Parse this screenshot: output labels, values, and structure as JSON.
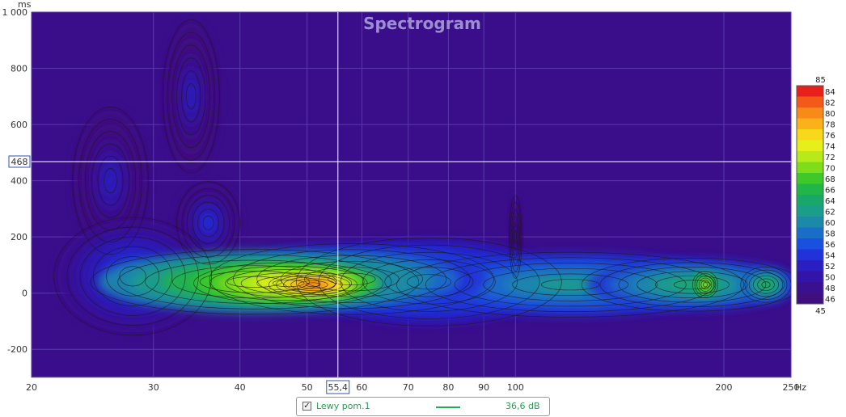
{
  "chart_data": {
    "type": "heatmap",
    "title": "Spectrogram",
    "xlabel": "",
    "x_unit": "Hz",
    "y_unit": "ms",
    "x_scale": "log",
    "xlim": [
      20,
      250
    ],
    "ylim": [
      -300,
      1000
    ],
    "x_ticks": [
      {
        "value": 20,
        "label": "20"
      },
      {
        "value": 30,
        "label": "30"
      },
      {
        "value": 40,
        "label": "40"
      },
      {
        "value": 50,
        "label": "50"
      },
      {
        "value": 60,
        "label": "60"
      },
      {
        "value": 70,
        "label": "70"
      },
      {
        "value": 80,
        "label": "80"
      },
      {
        "value": 90,
        "label": "90"
      },
      {
        "value": 100,
        "label": "100"
      },
      {
        "value": 200,
        "label": "200"
      },
      {
        "value": 250,
        "label": "250"
      }
    ],
    "y_ticks": [
      {
        "value": 1000,
        "label": "1 000"
      },
      {
        "value": 800,
        "label": "800"
      },
      {
        "value": 600,
        "label": "600"
      },
      {
        "value": 400,
        "label": "400"
      },
      {
        "value": 200,
        "label": "200"
      },
      {
        "value": 0,
        "label": "0"
      },
      {
        "value": -200,
        "label": "-200"
      }
    ],
    "cursor": {
      "x": 55.4,
      "x_label": "55,4",
      "y": 468,
      "y_label": "468"
    },
    "colorbar": {
      "min": 45,
      "max": 85,
      "min_label": "45",
      "max_label": "85",
      "ticks": [
        "84",
        "82",
        "80",
        "78",
        "76",
        "74",
        "72",
        "70",
        "68",
        "66",
        "64",
        "62",
        "60",
        "58",
        "56",
        "54",
        "52",
        "50",
        "48",
        "46"
      ],
      "colors": [
        "#e8201a",
        "#f25a1a",
        "#f88a1a",
        "#fbb21a",
        "#f8d81a",
        "#e6ef1a",
        "#b6ea1a",
        "#7edc1a",
        "#3ec82a",
        "#22b54a",
        "#1aa86a",
        "#1a9e8a",
        "#1a8aa8",
        "#1a6ec8",
        "#1a50e0",
        "#2033d8",
        "#2a1fc0",
        "#3214a8",
        "#3a1090",
        "#3f0f80"
      ]
    },
    "blobs": [
      {
        "hz": 51,
        "ms": 30,
        "rx": 0.14,
        "ry": 40,
        "level": 83
      },
      {
        "hz": 47,
        "ms": 35,
        "rx": 0.3,
        "ry": 70,
        "level": 77
      },
      {
        "hz": 42,
        "ms": 40,
        "rx": 0.52,
        "ry": 110,
        "level": 70
      },
      {
        "hz": 58,
        "ms": 50,
        "rx": 0.45,
        "ry": 120,
        "level": 64
      },
      {
        "hz": 75,
        "ms": 40,
        "rx": 0.42,
        "ry": 150,
        "level": 60
      },
      {
        "hz": 120,
        "ms": 30,
        "rx": 0.55,
        "ry": 110,
        "level": 62
      },
      {
        "hz": 180,
        "ms": 30,
        "rx": 0.35,
        "ry": 90,
        "level": 64
      },
      {
        "hz": 188,
        "ms": 30,
        "rx": 0.04,
        "ry": 45,
        "level": 74
      },
      {
        "hz": 230,
        "ms": 30,
        "rx": 0.08,
        "ry": 60,
        "level": 66
      },
      {
        "hz": 28,
        "ms": 60,
        "rx": 0.25,
        "ry": 200,
        "level": 56
      },
      {
        "hz": 26,
        "ms": 400,
        "rx": 0.12,
        "ry": 250,
        "level": 52
      },
      {
        "hz": 34,
        "ms": 700,
        "rx": 0.09,
        "ry": 260,
        "level": 52
      },
      {
        "hz": 36,
        "ms": 250,
        "rx": 0.1,
        "ry": 140,
        "level": 54
      },
      {
        "hz": 100,
        "ms": 200,
        "rx": 0.02,
        "ry": 140,
        "level": 50
      }
    ]
  },
  "legend": {
    "checked": true,
    "check_glyph": "✓",
    "name": "Lewy pom.1",
    "value": "36,6 dB",
    "line_color": "#22aa55"
  }
}
